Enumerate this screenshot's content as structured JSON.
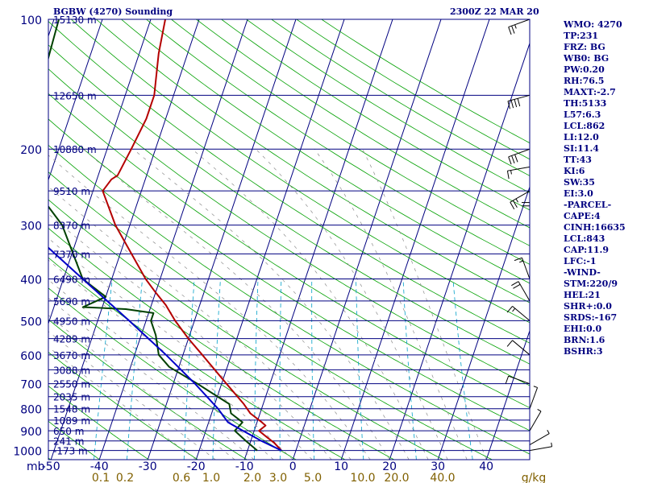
{
  "header": {
    "station": "BGBW (4270) Sounding",
    "valid_time": "2300Z 22 MAR 20"
  },
  "indices": [
    "WMO: 4270",
    "TP:231",
    "FRZ: BG",
    "WB0: BG",
    "PW:0.20",
    "RH:76.5",
    "MAXT:-2.7",
    "TH:5133",
    "L57:6.3",
    "LCL:862",
    "LI:12.0",
    "SI:11.4",
    "TT:43",
    "KI:6",
    "SW:35",
    "EI:3.0",
    "-PARCEL-",
    "CAPE:4",
    "CINH:16635",
    "LCL:843",
    "CAP:11.9",
    "LFC:-1",
    "-WIND-",
    "STM:220/9",
    "HEL:21",
    "SHR+:0.0",
    "SRDS:-167",
    "EHI:0.0",
    "BRN:1.6",
    "BSHR:3"
  ],
  "colors": {
    "isobar": "#000080",
    "isotherm": "#000080",
    "dry_adiabat": "#00a000",
    "moist_adiabat": "#8c8c8c",
    "mixing_ratio": "#00a0c8",
    "temperature": "#b40000",
    "dewpoint": "#004000",
    "parcel": "#0000c8",
    "text_pressure": "#000080",
    "text_temp": "#000080",
    "text_mixing": "#806000",
    "wind": "#000000"
  },
  "chart_data": {
    "type": "skew-t",
    "y_axis": {
      "label": "mb",
      "scale": "log",
      "range": [
        1050,
        100
      ],
      "ticks": [
        "100",
        "200",
        "300",
        "400",
        "500",
        "600",
        "700",
        "800",
        "900",
        "1000"
      ]
    },
    "x_axis": {
      "range": [
        -50,
        45
      ],
      "ticks": [
        "-50",
        "-40",
        "-30",
        "-20",
        "-10",
        "0",
        "10",
        "20",
        "30",
        "40"
      ]
    },
    "mixing_ratio_ticks": [
      "0.1",
      "0.2",
      "0.6",
      "1.0",
      "2.0",
      "3.0",
      "5.0",
      "10.0",
      "20.0",
      "40.0",
      "g/kg"
    ],
    "levels": [
      {
        "p": 100,
        "height": "15130 m"
      },
      {
        "p": 150,
        "height": "12650 m"
      },
      {
        "p": 200,
        "height": "10880 m"
      },
      {
        "p": 250,
        "height": "9510 m"
      },
      {
        "p": 300,
        "height": "8370 m"
      },
      {
        "p": 350,
        "height": "7370 m"
      },
      {
        "p": 400,
        "height": "6490 m"
      },
      {
        "p": 450,
        "height": "5690 m"
      },
      {
        "p": 500,
        "height": "4950 m"
      },
      {
        "p": 550,
        "height": "4289 m"
      },
      {
        "p": 600,
        "height": "3670 m"
      },
      {
        "p": 650,
        "height": "3088 m"
      },
      {
        "p": 700,
        "height": "2550 m"
      },
      {
        "p": 750,
        "height": "2035 m"
      },
      {
        "p": 800,
        "height": "1548 m"
      },
      {
        "p": 850,
        "height": "1089 m"
      },
      {
        "p": 900,
        "height": "650 m"
      },
      {
        "p": 950,
        "height": "241 m"
      },
      {
        "p": 1000,
        "height": "-173 m"
      }
    ],
    "series": [
      {
        "key": "temperature",
        "points": [
          {
            "p": 1000,
            "t": -3
          },
          {
            "p": 960,
            "t": -5
          },
          {
            "p": 930,
            "t": -7
          },
          {
            "p": 900,
            "t": -9
          },
          {
            "p": 875,
            "t": -8
          },
          {
            "p": 860,
            "t": -9
          },
          {
            "p": 820,
            "t": -12
          },
          {
            "p": 780,
            "t": -14
          },
          {
            "p": 700,
            "t": -19
          },
          {
            "p": 600,
            "t": -26
          },
          {
            "p": 550,
            "t": -30
          },
          {
            "p": 500,
            "t": -34
          },
          {
            "p": 460,
            "t": -37
          },
          {
            "p": 430,
            "t": -40
          },
          {
            "p": 400,
            "t": -43
          },
          {
            "p": 300,
            "t": -53
          },
          {
            "p": 250,
            "t": -58
          },
          {
            "p": 235,
            "t": -57
          },
          {
            "p": 230,
            "t": -56
          },
          {
            "p": 200,
            "t": -55
          },
          {
            "p": 170,
            "t": -54
          },
          {
            "p": 150,
            "t": -54
          },
          {
            "p": 120,
            "t": -56
          },
          {
            "p": 100,
            "t": -57
          }
        ]
      },
      {
        "key": "dewpoint",
        "points": [
          {
            "p": 1000,
            "t": -8
          },
          {
            "p": 950,
            "t": -11
          },
          {
            "p": 900,
            "t": -14
          },
          {
            "p": 860,
            "t": -13
          },
          {
            "p": 820,
            "t": -16
          },
          {
            "p": 780,
            "t": -17
          },
          {
            "p": 700,
            "t": -25
          },
          {
            "p": 640,
            "t": -32
          },
          {
            "p": 600,
            "t": -35
          },
          {
            "p": 540,
            "t": -37
          },
          {
            "p": 500,
            "t": -39
          },
          {
            "p": 480,
            "t": -39
          },
          {
            "p": 470,
            "t": -45
          },
          {
            "p": 465,
            "t": -54
          },
          {
            "p": 440,
            "t": -50
          },
          {
            "p": 400,
            "t": -56
          },
          {
            "p": 300,
            "t": -64
          },
          {
            "p": 260,
            "t": -70
          },
          {
            "p": 250,
            "t": -81
          },
          {
            "p": 200,
            "t": -79
          },
          {
            "p": 150,
            "t": -78
          },
          {
            "p": 100,
            "t": -79
          }
        ]
      },
      {
        "key": "parcel",
        "points": [
          {
            "p": 1000,
            "t": -3
          },
          {
            "p": 950,
            "t": -7.8
          },
          {
            "p": 900,
            "t": -12.3
          },
          {
            "p": 860,
            "t": -16
          },
          {
            "p": 800,
            "t": -19
          },
          {
            "p": 700,
            "t": -25.5
          },
          {
            "p": 600,
            "t": -33.5
          },
          {
            "p": 500,
            "t": -43.5
          },
          {
            "p": 400,
            "t": -56
          },
          {
            "p": 300,
            "t": -72
          },
          {
            "p": 250,
            "t": -82
          },
          {
            "p": 200,
            "t": -94
          },
          {
            "p": 150,
            "t": -110
          },
          {
            "p": 100,
            "t": -131
          }
        ]
      }
    ],
    "winds": [
      {
        "p": 1000,
        "dir": 80,
        "spd": 5
      },
      {
        "p": 970,
        "dir": 60,
        "spd": 5
      },
      {
        "p": 900,
        "dir": 30,
        "spd": 5
      },
      {
        "p": 800,
        "dir": 20,
        "spd": 5
      },
      {
        "p": 700,
        "dir": 290,
        "spd": 10
      },
      {
        "p": 600,
        "dir": 310,
        "spd": 10
      },
      {
        "p": 500,
        "dir": 310,
        "spd": 15
      },
      {
        "p": 450,
        "dir": 330,
        "spd": 20
      },
      {
        "p": 400,
        "dir": 340,
        "spd": 15
      },
      {
        "p": 300,
        "dir": 0,
        "spd": 20
      },
      {
        "p": 250,
        "dir": 240,
        "spd": 25
      },
      {
        "p": 220,
        "dir": 260,
        "spd": 15
      },
      {
        "p": 200,
        "dir": 250,
        "spd": 30
      },
      {
        "p": 150,
        "dir": 255,
        "spd": 40
      },
      {
        "p": 100,
        "dir": 250,
        "spd": 25
      }
    ]
  }
}
